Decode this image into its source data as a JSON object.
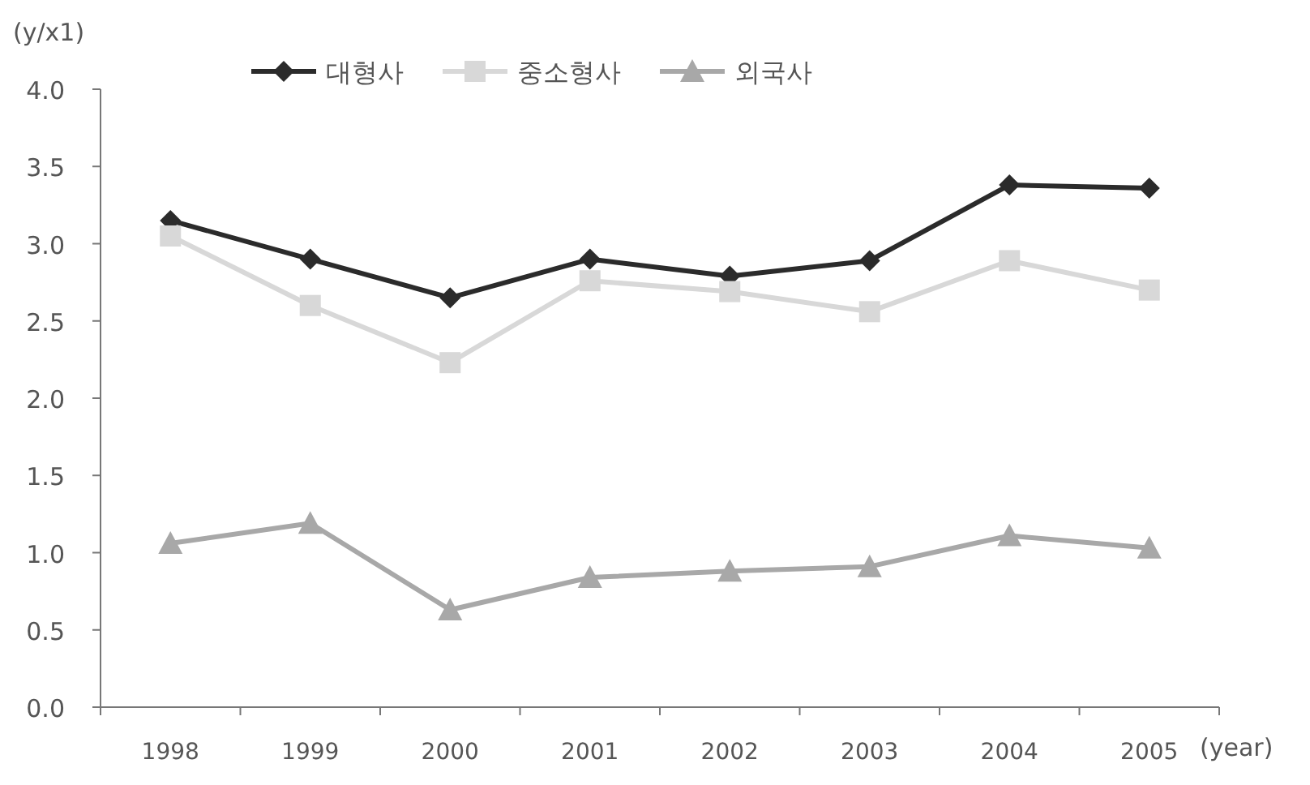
{
  "chart_data": {
    "type": "line",
    "ylabel": "(y/x1)",
    "xlabel": "(year)",
    "categories": [
      "1998",
      "1999",
      "2000",
      "2001",
      "2002",
      "2003",
      "2004",
      "2005"
    ],
    "ylim": [
      0,
      4
    ],
    "yticks": [
      {
        "value": 0,
        "label": "0.0"
      },
      {
        "value": 0.5,
        "label": "0.5"
      },
      {
        "value": 1,
        "label": "1.0"
      },
      {
        "value": 1.5,
        "label": "1.5"
      },
      {
        "value": 2,
        "label": "2.0"
      },
      {
        "value": 2.5,
        "label": "2.5"
      },
      {
        "value": 3,
        "label": "3.0"
      },
      {
        "value": 3.5,
        "label": "3.5"
      },
      {
        "value": 4,
        "label": "4.0"
      }
    ],
    "grid": false,
    "legend": "top",
    "series": [
      {
        "name": "대형사",
        "color": "#2b2b2b",
        "marker": "diamond",
        "values": [
          3.15,
          2.9,
          2.65,
          2.9,
          2.79,
          2.89,
          3.38,
          3.36
        ]
      },
      {
        "name": "중소형사",
        "color": "#d8d8d8",
        "marker": "square",
        "values": [
          3.05,
          2.6,
          2.23,
          2.76,
          2.69,
          2.56,
          2.89,
          2.7
        ]
      },
      {
        "name": "외국사",
        "color": "#a8a8a8",
        "marker": "triangle",
        "values": [
          1.06,
          1.19,
          0.63,
          0.84,
          0.88,
          0.91,
          1.11,
          1.03
        ]
      }
    ]
  }
}
